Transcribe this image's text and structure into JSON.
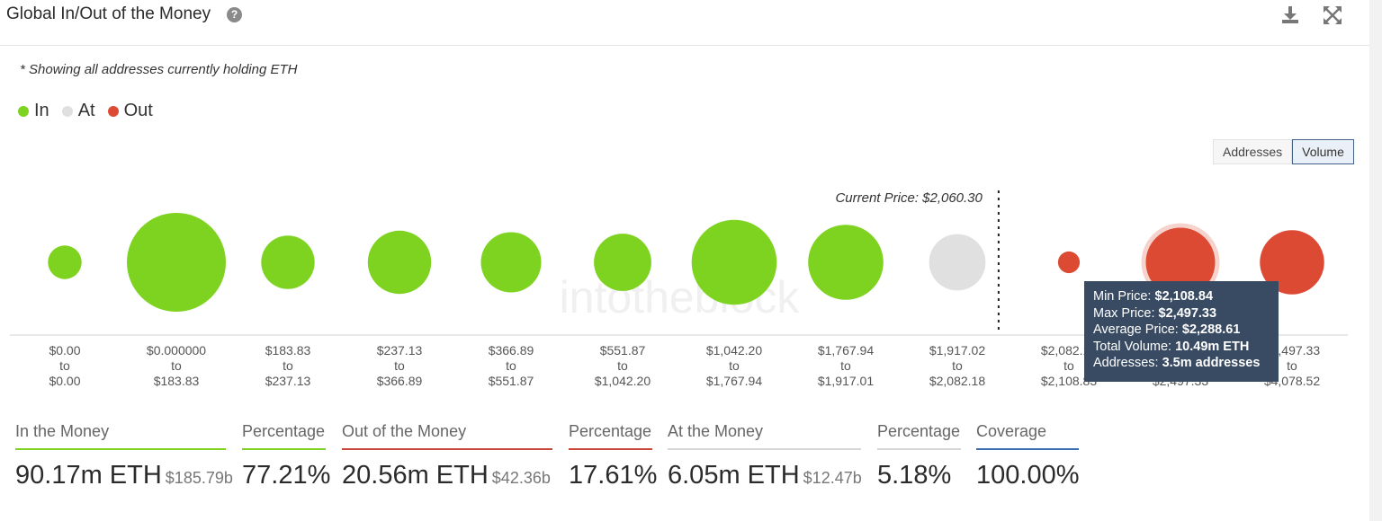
{
  "header": {
    "title": "Global In/Out of the Money",
    "help_icon": "?"
  },
  "note": "* Showing all addresses currently holding ETH",
  "legend": [
    {
      "label": "In",
      "color": "#7ed321"
    },
    {
      "label": "At",
      "color": "#e0e0e0"
    },
    {
      "label": "Out",
      "color": "#dc4a34"
    }
  ],
  "toggle": {
    "addresses": "Addresses",
    "volume": "Volume",
    "active": "Volume"
  },
  "watermark": "intotheblock",
  "chart_data": {
    "type": "bubble",
    "metric": "Volume",
    "current_price_label": "Current Price: $2,060.30",
    "current_price": 2060.3,
    "categories": [
      {
        "from": "$0.00",
        "to": "$0.00",
        "status": "in",
        "size": 0.34
      },
      {
        "from": "$0.000000",
        "to": "$183.83",
        "status": "in",
        "size": 1.0
      },
      {
        "from": "$183.83",
        "to": "$237.13",
        "status": "in",
        "size": 0.54
      },
      {
        "from": "$237.13",
        "to": "$366.89",
        "status": "in",
        "size": 0.64
      },
      {
        "from": "$366.89",
        "to": "$551.87",
        "status": "in",
        "size": 0.61
      },
      {
        "from": "$551.87",
        "to": "$1,042.20",
        "status": "in",
        "size": 0.58
      },
      {
        "from": "$1,042.20",
        "to": "$1,767.94",
        "status": "in",
        "size": 0.86
      },
      {
        "from": "$1,767.94",
        "to": "$1,917.01",
        "status": "in",
        "size": 0.76
      },
      {
        "from": "$1,917.02",
        "to": "$2,082.18",
        "status": "at",
        "size": 0.57
      },
      {
        "from": "$2,082.18",
        "to": "$2,108.83",
        "status": "out",
        "size": 0.22
      },
      {
        "from": "$2,108.84",
        "to": "$2,497.33",
        "status": "out",
        "size": 0.7,
        "highlighted": true
      },
      {
        "from": "$2,497.33",
        "to": "$4,078.52",
        "status": "out",
        "size": 0.65
      }
    ],
    "tooltip": {
      "min_price_label": "Min Price:",
      "min_price": "$2,108.84",
      "max_price_label": "Max Price:",
      "max_price": "$2,497.33",
      "avg_price_label": "Average Price:",
      "avg_price": "$2,288.61",
      "volume_label": "Total Volume:",
      "volume": "10.49m ETH",
      "addresses_label": "Addresses:",
      "addresses": "3.5m addresses"
    }
  },
  "stats": {
    "in": {
      "label": "In the Money",
      "value": "90.17m ETH",
      "sub": "$185.79b",
      "color": "#7ed321"
    },
    "in_pct": {
      "label": "Percentage",
      "value": "77.21%",
      "color": "#7ed321"
    },
    "out": {
      "label": "Out of the Money",
      "value": "20.56m ETH",
      "sub": "$42.36b",
      "color": "#c8473a"
    },
    "out_pct": {
      "label": "Percentage",
      "value": "17.61%",
      "color": "#c8473a"
    },
    "at": {
      "label": "At the Money",
      "value": "6.05m ETH",
      "sub": "$12.47b",
      "color": "#d6d6d6"
    },
    "at_pct": {
      "label": "Percentage",
      "value": "5.18%",
      "color": "#d6d6d6"
    },
    "coverage": {
      "label": "Coverage",
      "value": "100.00%",
      "color": "#3b6bb0"
    }
  }
}
